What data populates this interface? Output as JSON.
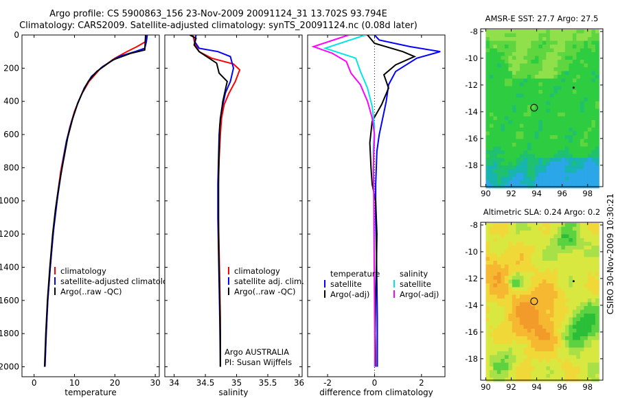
{
  "header": {
    "line1": "Argo profile: CS 5900863_156 23-Nov-2009 20091124_31 13.702S 93.794E",
    "line2": "Climatology: CARS2009. Satellite-adjusted climatology: synTS_20091124.nc (0.08d later)"
  },
  "colors": {
    "clim": "#ff0000",
    "sat": "#0000ff",
    "argo": "#000000",
    "sal_sat": "#00e5e5",
    "sal_argo": "#ff00ff"
  },
  "chart_data": [
    {
      "type": "line",
      "title": "",
      "xlabel": "temperature",
      "ylabel": "",
      "xlim": [
        -3,
        31
      ],
      "ylim": [
        2060,
        0
      ],
      "xticks": [
        0,
        10,
        20,
        30
      ],
      "yticks": [
        0,
        200,
        400,
        600,
        800,
        1000,
        1200,
        1400,
        1600,
        1800,
        2000
      ],
      "legend": [
        "climatology",
        "satellite-adjusted climatology",
        "Argo(..raw -QC)"
      ],
      "series": [
        {
          "name": "climatology",
          "color": "#ff0000",
          "points": [
            [
              28,
              0
            ],
            [
              27.6,
              40
            ],
            [
              25.5,
              70
            ],
            [
              23,
              100
            ],
            [
              20,
              140
            ],
            [
              16.5,
              200
            ],
            [
              13.6,
              280
            ],
            [
              11.7,
              360
            ],
            [
              10,
              460
            ],
            [
              8.8,
              560
            ],
            [
              7.7,
              680
            ],
            [
              6.6,
              820
            ],
            [
              5.6,
              1000
            ],
            [
              4.7,
              1200
            ],
            [
              4,
              1400
            ],
            [
              3.4,
              1600
            ],
            [
              3,
              1800
            ],
            [
              2.7,
              2000
            ]
          ]
        },
        {
          "name": "satellite-adjusted climatology",
          "color": "#0000ff",
          "points": [
            [
              28,
              0
            ],
            [
              27.8,
              40
            ],
            [
              27.4,
              80
            ],
            [
              25,
              100
            ],
            [
              21,
              130
            ],
            [
              17,
              190
            ],
            [
              14.2,
              250
            ],
            [
              12.4,
              320
            ],
            [
              10.7,
              420
            ],
            [
              9.3,
              520
            ],
            [
              8,
              640
            ],
            [
              6.9,
              800
            ],
            [
              5.8,
              980
            ],
            [
              4.8,
              1180
            ],
            [
              4,
              1400
            ],
            [
              3.4,
              1600
            ],
            [
              3,
              1800
            ],
            [
              2.7,
              2000
            ]
          ]
        },
        {
          "name": "Argo(..raw -QC)",
          "color": "#000000",
          "points": [
            [
              27.6,
              0
            ],
            [
              27.5,
              50
            ],
            [
              27.4,
              90
            ],
            [
              24,
              110
            ],
            [
              19.5,
              150
            ],
            [
              15.5,
              220
            ],
            [
              13.4,
              280
            ],
            [
              12.1,
              340
            ],
            [
              10.8,
              410
            ],
            [
              9.6,
              500
            ],
            [
              8.3,
              620
            ],
            [
              7.1,
              780
            ],
            [
              6.2,
              900
            ],
            [
              5.3,
              1050
            ],
            [
              4.6,
              1200
            ],
            [
              3.9,
              1400
            ],
            [
              3.3,
              1600
            ],
            [
              2.9,
              1800
            ],
            [
              2.6,
              2000
            ]
          ]
        }
      ]
    },
    {
      "type": "line",
      "title": "",
      "xlabel": "salinity",
      "ylabel": "",
      "xlim": [
        33.85,
        36.05
      ],
      "ylim": [
        2060,
        0
      ],
      "xticks": [
        34,
        34.5,
        35,
        35.5,
        36
      ],
      "legend": [
        "climatology",
        "satellite adj. clim.",
        "Argo(..raw -QC)"
      ],
      "annotation": [
        "Argo AUSTRALIA",
        "PI: Susan Wijffels"
      ],
      "series": [
        {
          "name": "climatology",
          "color": "#ff0000",
          "points": [
            [
              34.3,
              0
            ],
            [
              34.33,
              50
            ],
            [
              34.4,
              100
            ],
            [
              34.6,
              140
            ],
            [
              34.95,
              175
            ],
            [
              35.05,
              210
            ],
            [
              34.98,
              280
            ],
            [
              34.88,
              350
            ],
            [
              34.8,
              420
            ],
            [
              34.76,
              500
            ],
            [
              34.74,
              600
            ],
            [
              34.72,
              750
            ],
            [
              34.71,
              900
            ],
            [
              34.71,
              1100
            ],
            [
              34.72,
              1300
            ],
            [
              34.73,
              1500
            ],
            [
              34.74,
              1700
            ],
            [
              34.74,
              2000
            ]
          ]
        },
        {
          "name": "satellite adj. clim.",
          "color": "#0000ff",
          "points": [
            [
              34.35,
              0
            ],
            [
              34.33,
              40
            ],
            [
              34.4,
              80
            ],
            [
              34.7,
              100
            ],
            [
              34.9,
              130
            ],
            [
              34.95,
              200
            ],
            [
              34.9,
              280
            ],
            [
              34.82,
              350
            ],
            [
              34.78,
              420
            ],
            [
              34.74,
              500
            ],
            [
              34.72,
              600
            ],
            [
              34.71,
              750
            ],
            [
              34.7,
              900
            ],
            [
              34.7,
              1100
            ],
            [
              34.71,
              1300
            ],
            [
              34.72,
              1500
            ],
            [
              34.73,
              1700
            ],
            [
              34.74,
              2000
            ]
          ]
        },
        {
          "name": "Argo(..raw -QC)",
          "color": "#000000",
          "points": [
            [
              34.25,
              0
            ],
            [
              34.35,
              20
            ],
            [
              34.32,
              60
            ],
            [
              34.4,
              100
            ],
            [
              34.52,
              130
            ],
            [
              34.68,
              170
            ],
            [
              34.72,
              230
            ],
            [
              34.85,
              280
            ],
            [
              34.82,
              330
            ],
            [
              34.78,
              400
            ],
            [
              34.75,
              480
            ],
            [
              34.73,
              550
            ],
            [
              34.72,
              700
            ],
            [
              34.71,
              850
            ],
            [
              34.71,
              1000
            ],
            [
              34.71,
              1200
            ],
            [
              34.72,
              1400
            ],
            [
              34.73,
              1600
            ],
            [
              34.74,
              1800
            ],
            [
              34.74,
              2000
            ]
          ]
        }
      ]
    },
    {
      "type": "line",
      "title": "",
      "xlabel": "difference from climatology",
      "ylabel": "",
      "xlim": [
        -2.85,
        3
      ],
      "ylim": [
        2060,
        0
      ],
      "xticks": [
        -2,
        0,
        2
      ],
      "legend_temperature": [
        "temperature",
        "satellite",
        "Argo(-adj)"
      ],
      "legend_salinity": [
        "salinity",
        "satellite",
        "Argo(-adj)"
      ],
      "series": [
        {
          "name": "temperature satellite",
          "color": "#0000ff",
          "points": [
            [
              0,
              0
            ],
            [
              0.2,
              30
            ],
            [
              1.5,
              70
            ],
            [
              2.8,
              100
            ],
            [
              1.8,
              140
            ],
            [
              0.9,
              220
            ],
            [
              0.6,
              300
            ],
            [
              0.5,
              400
            ],
            [
              0.35,
              500
            ],
            [
              0.2,
              600
            ],
            [
              0.1,
              700
            ],
            [
              0.05,
              900
            ],
            [
              0.05,
              1100
            ],
            [
              0.08,
              1300
            ],
            [
              0.1,
              1500
            ],
            [
              0.12,
              1700
            ],
            [
              0.12,
              2000
            ]
          ]
        },
        {
          "name": "temperature Argo(-adj)",
          "color": "#000000",
          "points": [
            [
              -0.3,
              0
            ],
            [
              0,
              50
            ],
            [
              1.2,
              100
            ],
            [
              1.7,
              130
            ],
            [
              0.9,
              180
            ],
            [
              0.4,
              240
            ],
            [
              0.6,
              320
            ],
            [
              0.3,
              420
            ],
            [
              -0.1,
              520
            ],
            [
              -0.2,
              650
            ],
            [
              -0.15,
              800
            ],
            [
              -0.1,
              900
            ],
            [
              0.05,
              1000
            ],
            [
              0.1,
              1200
            ],
            [
              0.08,
              1400
            ],
            [
              0.05,
              1600
            ],
            [
              0.03,
              1800
            ],
            [
              0.05,
              2000
            ]
          ]
        },
        {
          "name": "salinity satellite",
          "color": "#00e5e5",
          "points": [
            [
              -0.4,
              0
            ],
            [
              -2.1,
              80
            ],
            [
              -0.8,
              140
            ],
            [
              -0.6,
              220
            ],
            [
              -0.3,
              320
            ],
            [
              -0.1,
              430
            ],
            [
              0,
              550
            ],
            [
              -0.05,
              700
            ],
            [
              -0.03,
              900
            ],
            [
              -0.02,
              1200
            ],
            [
              0,
              1500
            ],
            [
              0.02,
              1800
            ],
            [
              0,
              2000
            ]
          ]
        },
        {
          "name": "salinity Argo(-adj)",
          "color": "#ff00ff",
          "points": [
            [
              -1.1,
              0
            ],
            [
              -2.6,
              70
            ],
            [
              -1.8,
              110
            ],
            [
              -1.2,
              160
            ],
            [
              -1,
              230
            ],
            [
              -0.6,
              300
            ],
            [
              -0.3,
              400
            ],
            [
              -0.1,
              500
            ],
            [
              0,
              600
            ],
            [
              -0.05,
              800
            ],
            [
              -0.03,
              1000
            ],
            [
              -0.02,
              1300
            ],
            [
              0,
              1600
            ],
            [
              0.02,
              2000
            ]
          ]
        }
      ]
    },
    {
      "type": "heatmap",
      "title": "AMSR-E SST: 27.7 Argo: 27.5",
      "xlim": [
        89.6,
        99.2
      ],
      "ylim": [
        -19.6,
        -7.8
      ],
      "xticks": [
        90,
        92,
        94,
        96,
        98
      ],
      "yticks": [
        -8,
        -10,
        -12,
        -14,
        -16,
        -18
      ],
      "argo_position": [
        93.8,
        -13.7
      ],
      "track_dot": [
        96.9,
        -12.2
      ]
    },
    {
      "type": "heatmap",
      "title": "Altimetric SLA: 0.24 Argo: 0.2",
      "xlim": [
        89.6,
        99.2
      ],
      "ylim": [
        -19.6,
        -7.8
      ],
      "xticks": [
        90,
        92,
        94,
        96,
        98
      ],
      "yticks": [
        -8,
        -10,
        -12,
        -14,
        -16,
        -18
      ],
      "argo_position": [
        93.8,
        -13.7
      ],
      "track_dot": [
        96.9,
        -12.2
      ]
    }
  ],
  "footer": {
    "credit": "CSIRO 30-Nov-2009 10:30:21"
  }
}
